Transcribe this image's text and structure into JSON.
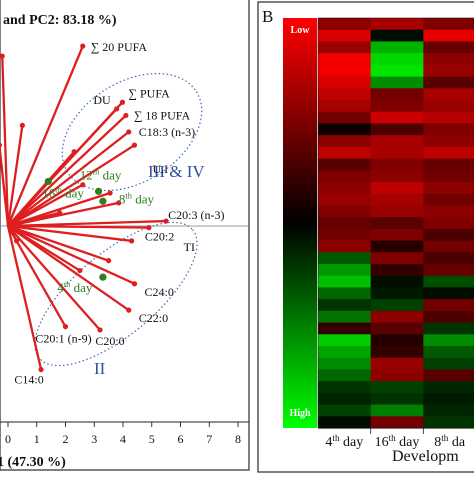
{
  "chart_data": [
    {
      "type": "scatter",
      "subtype": "pca-biplot",
      "title": "and PC2: 83.18 %)",
      "xlabel": "1 (47.30 %)",
      "x_ticks": [
        "0",
        "1",
        "2",
        "3",
        "4",
        "5",
        "6",
        "7",
        "8"
      ],
      "xlim": [
        0,
        8
      ],
      "grid": false,
      "colors": {
        "vectors": "#dd1f1f",
        "samples": "#2e7d20",
        "group_outline": "#3b6cb0",
        "group_labels": "#2f4f9f"
      },
      "groups": [
        {
          "label": "III & IV",
          "members": [
            "∑ 20 PUFA",
            "DU",
            "∑ PUFA",
            "∑ 18 PUFA",
            "C18:3 (n-3)",
            "U.I",
            "12th day",
            "8th day",
            "16th day"
          ]
        },
        {
          "label": "II",
          "members": [
            "C20:3 (n-3)",
            "TI",
            "C20:2",
            "C24:0",
            "C22:0",
            "C20:1 (n-9)",
            "C20:0",
            "C14:0",
            "4th day"
          ]
        }
      ],
      "variables": [
        {
          "label": "∑ 20 PUFA",
          "x": 2.6,
          "y": 5.45
        },
        {
          "label": "DU",
          "x": 3.78,
          "y": 3.55
        },
        {
          "label": "∑ PUFA",
          "x": 3.98,
          "y": 3.75
        },
        {
          "label": "∑ 18 PUFA",
          "x": 4.1,
          "y": 3.35
        },
        {
          "label": "C18:3 (n-3)",
          "x": 4.2,
          "y": 2.85
        },
        {
          "label": "U.I",
          "x": 4.4,
          "y": 2.45
        },
        {
          "label": "C20:3 (n-3)",
          "x": 5.5,
          "y": 0.15
        },
        {
          "label": "C20:2",
          "x": 4.9,
          "y": -0.05
        },
        {
          "label": "TI",
          "x": 4.3,
          "y": -0.45
        },
        {
          "label": "C24:0",
          "x": 4.4,
          "y": -1.75
        },
        {
          "label": "C22:0",
          "x": 4.2,
          "y": -2.55
        },
        {
          "label": "C20:1 (n-9)",
          "x": 2.0,
          "y": -3.05
        },
        {
          "label": "C20:0",
          "x": 3.2,
          "y": -3.15
        },
        {
          "label": "C14:0",
          "x": 1.15,
          "y": -4.35
        }
      ],
      "unlabeled_vectors": [
        {
          "x": -0.2,
          "y": 5.15
        },
        {
          "x": -0.3,
          "y": 2.45
        },
        {
          "x": 0.5,
          "y": 3.05
        },
        {
          "x": 2.3,
          "y": 2.25
        },
        {
          "x": 3.55,
          "y": 1.0
        },
        {
          "x": 3.85,
          "y": 0.7
        },
        {
          "x": 2.6,
          "y": 1.25
        },
        {
          "x": 1.8,
          "y": 0.4
        },
        {
          "x": 3.5,
          "y": -1.05
        },
        {
          "x": 0.3,
          "y": -0.45
        },
        {
          "x": 2.5,
          "y": -1.35
        }
      ],
      "samples": [
        {
          "label": "4th day",
          "label_text": "4",
          "label_sup": "th",
          "label_suffix": " day",
          "x": 3.3,
          "y": -1.55
        },
        {
          "label": "8th day",
          "label_text": "8",
          "label_sup": "th",
          "label_suffix": " day",
          "x": 3.3,
          "y": 0.75
        },
        {
          "label": "12th day",
          "label_text": "12",
          "label_sup": "th",
          "label_suffix": " day",
          "x": 3.15,
          "y": 1.05
        },
        {
          "label": "16th day",
          "label_text": "16",
          "label_sup": "th",
          "label_suffix": " day",
          "x": 1.4,
          "y": 1.35
        }
      ]
    },
    {
      "type": "heatmap",
      "panel_label": "B",
      "xlabel": "Developm",
      "colorbar_top": "Low",
      "colorbar_bottom": "High",
      "colorscale": [
        "#ff0000",
        "#000000",
        "#00ff00"
      ],
      "columns": [
        {
          "text": "4",
          "sup": "th",
          "suffix": " day"
        },
        {
          "text": "16",
          "sup": "th",
          "suffix": " day"
        },
        {
          "text": "8",
          "sup": "th",
          "suffix": " da"
        }
      ],
      "values": [
        [
          -0.55,
          -0.65,
          -0.5
        ],
        [
          -0.85,
          0.05,
          -0.9
        ],
        [
          -0.6,
          0.7,
          -0.4
        ],
        [
          -0.95,
          0.85,
          -0.55
        ],
        [
          -0.95,
          0.9,
          -0.6
        ],
        [
          -0.85,
          0.55,
          -0.35
        ],
        [
          -0.75,
          -0.45,
          -0.65
        ],
        [
          -0.65,
          -0.5,
          -0.6
        ],
        [
          -0.45,
          -0.8,
          -0.7
        ],
        [
          -0.05,
          -0.3,
          -0.5
        ],
        [
          -0.55,
          -0.65,
          -0.55
        ],
        [
          -0.75,
          -0.65,
          -0.75
        ],
        [
          -0.35,
          -0.5,
          -0.4
        ],
        [
          -0.5,
          -0.55,
          -0.45
        ],
        [
          -0.55,
          -0.75,
          -0.55
        ],
        [
          -0.6,
          -0.65,
          -0.45
        ],
        [
          -0.5,
          -0.6,
          -0.55
        ],
        [
          -0.4,
          -0.35,
          -0.5
        ],
        [
          -0.45,
          -0.5,
          -0.3
        ],
        [
          -0.55,
          -0.15,
          -0.45
        ],
        [
          0.35,
          -0.5,
          -0.3
        ],
        [
          0.6,
          -0.2,
          -0.4
        ],
        [
          0.75,
          0.05,
          0.3
        ],
        [
          0.4,
          0.1,
          0.05
        ],
        [
          0.2,
          0.25,
          -0.45
        ],
        [
          0.45,
          -0.55,
          -0.3
        ],
        [
          -0.2,
          -0.35,
          0.2
        ],
        [
          0.8,
          -0.15,
          0.55
        ],
        [
          0.65,
          -0.2,
          0.35
        ],
        [
          0.55,
          -0.6,
          0.25
        ],
        [
          0.4,
          -0.55,
          -0.35
        ],
        [
          0.2,
          0.25,
          0.15
        ],
        [
          0.15,
          0.2,
          0.1
        ],
        [
          0.25,
          0.5,
          0.15
        ],
        [
          0.05,
          -0.45,
          0.2
        ]
      ]
    }
  ]
}
